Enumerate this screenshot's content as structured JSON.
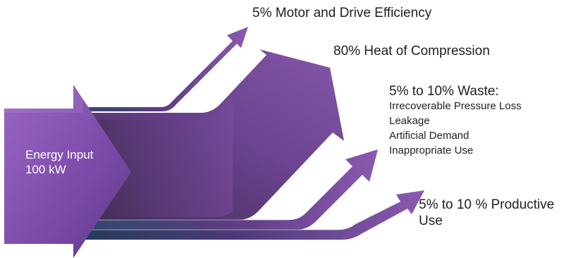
{
  "colors": {
    "arrow_main": "#6b3f8f",
    "arrow_light": "#8a59b0",
    "arrow_dark": "#3a2748",
    "shadow_blue": "#2c4a6b",
    "input_text": "#ffffff",
    "label_text": "#1f1f1f"
  },
  "input": {
    "line1": "Energy Input",
    "line2": "100 kW"
  },
  "outputs": {
    "motor": {
      "label": "5% Motor and Drive Efficiency"
    },
    "heat": {
      "label": "80% Heat of Compression"
    },
    "waste": {
      "label": "5% to 10% Waste:",
      "items": [
        "Irrecoverable Pressure Loss",
        "Leakage",
        "Artificial Demand",
        "Inappropriate Use"
      ]
    },
    "productive": {
      "line1": "5% to 10 % Productive",
      "line2": "Use"
    }
  }
}
